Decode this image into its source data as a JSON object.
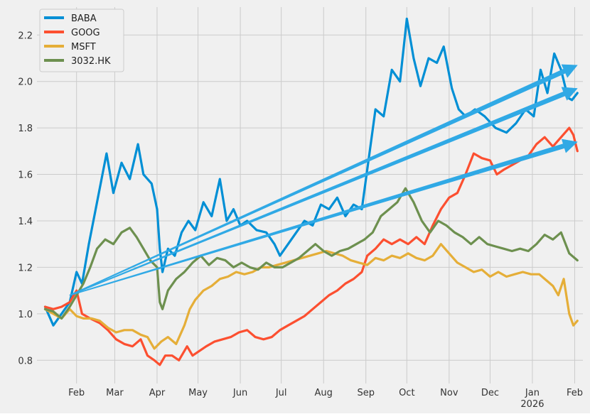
{
  "chart_data": {
    "type": "line",
    "title": "",
    "xlabel": "",
    "ylabel": "",
    "x_ticks": [
      {
        "label": "Feb",
        "day": 23
      },
      {
        "label": "Mar",
        "day": 51
      },
      {
        "label": "Apr",
        "day": 82
      },
      {
        "label": "May",
        "day": 112
      },
      {
        "label": "Jun",
        "day": 143
      },
      {
        "label": "Jul",
        "day": 173
      },
      {
        "label": "Aug",
        "day": 204
      },
      {
        "label": "Sep",
        "day": 235
      },
      {
        "label": "Oct",
        "day": 265
      },
      {
        "label": "Nov",
        "day": 296
      },
      {
        "label": "Dec",
        "day": 326
      },
      {
        "label": "Jan",
        "day": 357,
        "sublabel": "2026"
      },
      {
        "label": "Feb",
        "day": 388
      }
    ],
    "xlim": [
      -6,
      394
    ],
    "ylim": [
      0.7,
      2.32
    ],
    "y_ticks": [
      0.8,
      1.0,
      1.2,
      1.4,
      1.6,
      1.8,
      2.0,
      2.2
    ],
    "grid": true,
    "legend": "top-left",
    "series": [
      {
        "name": "BABA",
        "color": "#008fd5",
        "points": [
          [
            0,
            1.03
          ],
          [
            6,
            0.95
          ],
          [
            12,
            1.0
          ],
          [
            18,
            1.05
          ],
          [
            23,
            1.18
          ],
          [
            27,
            1.13
          ],
          [
            32,
            1.3
          ],
          [
            38,
            1.48
          ],
          [
            45,
            1.69
          ],
          [
            50,
            1.52
          ],
          [
            56,
            1.65
          ],
          [
            62,
            1.58
          ],
          [
            68,
            1.73
          ],
          [
            72,
            1.6
          ],
          [
            78,
            1.56
          ],
          [
            82,
            1.45
          ],
          [
            84,
            1.28
          ],
          [
            86,
            1.18
          ],
          [
            90,
            1.28
          ],
          [
            95,
            1.25
          ],
          [
            100,
            1.35
          ],
          [
            105,
            1.4
          ],
          [
            110,
            1.36
          ],
          [
            116,
            1.48
          ],
          [
            122,
            1.42
          ],
          [
            128,
            1.58
          ],
          [
            133,
            1.4
          ],
          [
            138,
            1.45
          ],
          [
            143,
            1.38
          ],
          [
            148,
            1.4
          ],
          [
            155,
            1.36
          ],
          [
            162,
            1.35
          ],
          [
            168,
            1.3
          ],
          [
            172,
            1.25
          ],
          [
            178,
            1.3
          ],
          [
            184,
            1.35
          ],
          [
            190,
            1.4
          ],
          [
            196,
            1.38
          ],
          [
            202,
            1.47
          ],
          [
            208,
            1.45
          ],
          [
            214,
            1.5
          ],
          [
            220,
            1.42
          ],
          [
            226,
            1.47
          ],
          [
            232,
            1.45
          ],
          [
            236,
            1.62
          ],
          [
            242,
            1.88
          ],
          [
            248,
            1.85
          ],
          [
            254,
            2.05
          ],
          [
            260,
            2.0
          ],
          [
            265,
            2.27
          ],
          [
            270,
            2.1
          ],
          [
            275,
            1.98
          ],
          [
            281,
            2.1
          ],
          [
            287,
            2.08
          ],
          [
            292,
            2.15
          ],
          [
            298,
            1.97
          ],
          [
            303,
            1.88
          ],
          [
            308,
            1.85
          ],
          [
            315,
            1.88
          ],
          [
            322,
            1.85
          ],
          [
            330,
            1.8
          ],
          [
            338,
            1.78
          ],
          [
            345,
            1.82
          ],
          [
            352,
            1.88
          ],
          [
            358,
            1.85
          ],
          [
            363,
            2.05
          ],
          [
            368,
            1.95
          ],
          [
            373,
            2.12
          ],
          [
            378,
            2.05
          ],
          [
            383,
            1.93
          ],
          [
            386,
            1.92
          ],
          [
            390,
            1.95
          ]
        ]
      },
      {
        "name": "GOOG",
        "color": "#fc4f30",
        "points": [
          [
            0,
            1.03
          ],
          [
            6,
            1.02
          ],
          [
            12,
            1.03
          ],
          [
            18,
            1.05
          ],
          [
            23,
            1.1
          ],
          [
            27,
            1.0
          ],
          [
            33,
            0.98
          ],
          [
            40,
            0.96
          ],
          [
            46,
            0.93
          ],
          [
            52,
            0.89
          ],
          [
            58,
            0.87
          ],
          [
            64,
            0.86
          ],
          [
            70,
            0.89
          ],
          [
            75,
            0.82
          ],
          [
            80,
            0.8
          ],
          [
            84,
            0.78
          ],
          [
            88,
            0.82
          ],
          [
            93,
            0.82
          ],
          [
            98,
            0.8
          ],
          [
            104,
            0.86
          ],
          [
            108,
            0.82
          ],
          [
            113,
            0.84
          ],
          [
            118,
            0.86
          ],
          [
            124,
            0.88
          ],
          [
            130,
            0.89
          ],
          [
            136,
            0.9
          ],
          [
            142,
            0.92
          ],
          [
            148,
            0.93
          ],
          [
            154,
            0.9
          ],
          [
            160,
            0.89
          ],
          [
            166,
            0.9
          ],
          [
            172,
            0.93
          ],
          [
            178,
            0.95
          ],
          [
            184,
            0.97
          ],
          [
            190,
            0.99
          ],
          [
            196,
            1.02
          ],
          [
            202,
            1.05
          ],
          [
            208,
            1.08
          ],
          [
            214,
            1.1
          ],
          [
            220,
            1.13
          ],
          [
            226,
            1.15
          ],
          [
            232,
            1.18
          ],
          [
            236,
            1.25
          ],
          [
            242,
            1.28
          ],
          [
            248,
            1.32
          ],
          [
            254,
            1.3
          ],
          [
            260,
            1.32
          ],
          [
            266,
            1.3
          ],
          [
            272,
            1.33
          ],
          [
            278,
            1.3
          ],
          [
            284,
            1.38
          ],
          [
            290,
            1.45
          ],
          [
            296,
            1.5
          ],
          [
            302,
            1.52
          ],
          [
            308,
            1.6
          ],
          [
            314,
            1.69
          ],
          [
            320,
            1.67
          ],
          [
            326,
            1.66
          ],
          [
            331,
            1.6
          ],
          [
            336,
            1.62
          ],
          [
            342,
            1.64
          ],
          [
            348,
            1.66
          ],
          [
            354,
            1.68
          ],
          [
            360,
            1.73
          ],
          [
            366,
            1.76
          ],
          [
            372,
            1.72
          ],
          [
            378,
            1.76
          ],
          [
            384,
            1.8
          ],
          [
            387,
            1.77
          ],
          [
            390,
            1.7
          ]
        ]
      },
      {
        "name": "MSFT",
        "color": "#e5ae38",
        "points": [
          [
            0,
            1.02
          ],
          [
            6,
            1.0
          ],
          [
            12,
            0.98
          ],
          [
            18,
            1.02
          ],
          [
            23,
            0.99
          ],
          [
            28,
            0.98
          ],
          [
            34,
            0.98
          ],
          [
            40,
            0.97
          ],
          [
            46,
            0.94
          ],
          [
            52,
            0.92
          ],
          [
            58,
            0.93
          ],
          [
            64,
            0.93
          ],
          [
            70,
            0.91
          ],
          [
            75,
            0.9
          ],
          [
            80,
            0.85
          ],
          [
            85,
            0.88
          ],
          [
            90,
            0.9
          ],
          [
            96,
            0.87
          ],
          [
            102,
            0.95
          ],
          [
            106,
            1.02
          ],
          [
            110,
            1.06
          ],
          [
            116,
            1.1
          ],
          [
            122,
            1.12
          ],
          [
            128,
            1.15
          ],
          [
            134,
            1.16
          ],
          [
            140,
            1.18
          ],
          [
            146,
            1.17
          ],
          [
            152,
            1.18
          ],
          [
            158,
            1.2
          ],
          [
            164,
            1.2
          ],
          [
            170,
            1.21
          ],
          [
            176,
            1.22
          ],
          [
            182,
            1.23
          ],
          [
            188,
            1.24
          ],
          [
            194,
            1.25
          ],
          [
            200,
            1.26
          ],
          [
            206,
            1.27
          ],
          [
            212,
            1.26
          ],
          [
            218,
            1.25
          ],
          [
            224,
            1.23
          ],
          [
            230,
            1.22
          ],
          [
            236,
            1.21
          ],
          [
            242,
            1.24
          ],
          [
            248,
            1.23
          ],
          [
            254,
            1.25
          ],
          [
            260,
            1.24
          ],
          [
            266,
            1.26
          ],
          [
            272,
            1.24
          ],
          [
            278,
            1.23
          ],
          [
            284,
            1.25
          ],
          [
            290,
            1.3
          ],
          [
            296,
            1.26
          ],
          [
            302,
            1.22
          ],
          [
            308,
            1.2
          ],
          [
            314,
            1.18
          ],
          [
            320,
            1.19
          ],
          [
            326,
            1.16
          ],
          [
            332,
            1.18
          ],
          [
            338,
            1.16
          ],
          [
            344,
            1.17
          ],
          [
            350,
            1.18
          ],
          [
            356,
            1.17
          ],
          [
            362,
            1.17
          ],
          [
            368,
            1.14
          ],
          [
            372,
            1.12
          ],
          [
            376,
            1.08
          ],
          [
            380,
            1.15
          ],
          [
            384,
            1.0
          ],
          [
            387,
            0.95
          ],
          [
            390,
            0.97
          ]
        ]
      },
      {
        "name": "3032.HK",
        "color": "#6d904f",
        "points": [
          [
            0,
            1.02
          ],
          [
            6,
            1.01
          ],
          [
            12,
            0.98
          ],
          [
            18,
            1.03
          ],
          [
            23,
            1.08
          ],
          [
            28,
            1.13
          ],
          [
            33,
            1.2
          ],
          [
            38,
            1.28
          ],
          [
            44,
            1.32
          ],
          [
            50,
            1.3
          ],
          [
            56,
            1.35
          ],
          [
            62,
            1.37
          ],
          [
            67,
            1.33
          ],
          [
            72,
            1.28
          ],
          [
            77,
            1.23
          ],
          [
            82,
            1.2
          ],
          [
            84,
            1.05
          ],
          [
            86,
            1.02
          ],
          [
            90,
            1.1
          ],
          [
            96,
            1.15
          ],
          [
            102,
            1.18
          ],
          [
            108,
            1.22
          ],
          [
            114,
            1.25
          ],
          [
            120,
            1.21
          ],
          [
            126,
            1.24
          ],
          [
            132,
            1.23
          ],
          [
            138,
            1.2
          ],
          [
            144,
            1.22
          ],
          [
            150,
            1.2
          ],
          [
            156,
            1.19
          ],
          [
            162,
            1.22
          ],
          [
            168,
            1.2
          ],
          [
            174,
            1.2
          ],
          [
            180,
            1.22
          ],
          [
            186,
            1.24
          ],
          [
            192,
            1.27
          ],
          [
            198,
            1.3
          ],
          [
            204,
            1.27
          ],
          [
            210,
            1.25
          ],
          [
            216,
            1.27
          ],
          [
            222,
            1.28
          ],
          [
            228,
            1.3
          ],
          [
            234,
            1.32
          ],
          [
            240,
            1.35
          ],
          [
            246,
            1.42
          ],
          [
            252,
            1.45
          ],
          [
            258,
            1.48
          ],
          [
            264,
            1.54
          ],
          [
            270,
            1.48
          ],
          [
            276,
            1.4
          ],
          [
            282,
            1.35
          ],
          [
            288,
            1.4
          ],
          [
            294,
            1.38
          ],
          [
            300,
            1.35
          ],
          [
            306,
            1.33
          ],
          [
            312,
            1.3
          ],
          [
            318,
            1.33
          ],
          [
            324,
            1.3
          ],
          [
            330,
            1.29
          ],
          [
            336,
            1.28
          ],
          [
            342,
            1.27
          ],
          [
            348,
            1.28
          ],
          [
            354,
            1.27
          ],
          [
            360,
            1.3
          ],
          [
            366,
            1.34
          ],
          [
            372,
            1.32
          ],
          [
            378,
            1.35
          ],
          [
            384,
            1.26
          ],
          [
            390,
            1.23
          ]
        ]
      }
    ],
    "arrows": [
      {
        "color": "#30a9e5",
        "from": [
          18,
          1.08
        ],
        "to": [
          390,
          2.07
        ]
      },
      {
        "color": "#30a9e5",
        "from": [
          18,
          1.08
        ],
        "to": [
          390,
          1.97
        ]
      },
      {
        "color": "#30a9e5",
        "from": [
          18,
          1.08
        ],
        "to": [
          390,
          1.74
        ]
      }
    ]
  }
}
